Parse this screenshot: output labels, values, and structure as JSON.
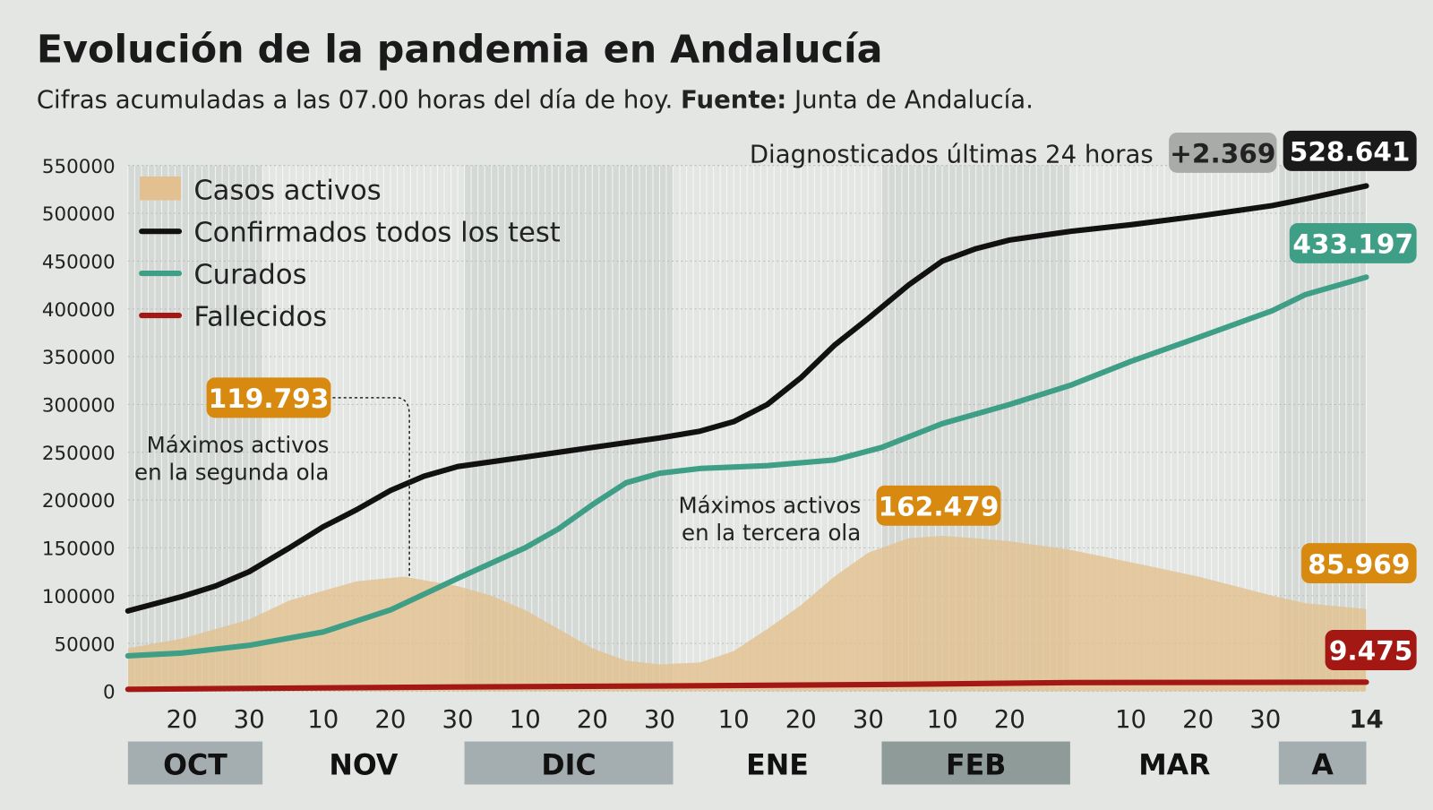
{
  "title": "Evolución de la pandemia en Andalucía",
  "subtitle_prefix": "Cifras acumuladas a las 07.00 horas del día de hoy.",
  "subtitle_source_label": "Fuente:",
  "subtitle_source": "Junta de Andalucía.",
  "diagnosed_label": "Diagnosticados últimas 24 horas",
  "diagnosed_delta": "+2.369",
  "colors": {
    "activos": "#e2c08f",
    "confirmados": "#111111",
    "curados": "#3f9e86",
    "fallecidos": "#a31812",
    "badge_activos": "#d8890f",
    "band": "#c9cecc"
  },
  "chart_data": {
    "type": "line",
    "title": "Evolución de la pandemia en Andalucía",
    "ylim": [
      0,
      550000
    ],
    "yticks": [
      "0",
      "50000",
      "100000",
      "150000",
      "200000",
      "250000",
      "300000",
      "350000",
      "400000",
      "450000",
      "500000",
      "550000"
    ],
    "xlim": [
      "2020-10-12",
      "2021-04-14"
    ],
    "xticks": [
      {
        "d": "2020-10-20",
        "l": "20"
      },
      {
        "d": "2020-10-30",
        "l": "30"
      },
      {
        "d": "2020-11-10",
        "l": "10"
      },
      {
        "d": "2020-11-20",
        "l": "20"
      },
      {
        "d": "2020-11-30",
        "l": "30"
      },
      {
        "d": "2020-12-10",
        "l": "10"
      },
      {
        "d": "2020-12-20",
        "l": "20"
      },
      {
        "d": "2020-12-30",
        "l": "30"
      },
      {
        "d": "2021-01-10",
        "l": "10"
      },
      {
        "d": "2021-01-20",
        "l": "20"
      },
      {
        "d": "2021-01-30",
        "l": "30"
      },
      {
        "d": "2021-02-10",
        "l": "10"
      },
      {
        "d": "2021-02-20",
        "l": "20"
      },
      {
        "d": "2021-03-10",
        "l": "10"
      },
      {
        "d": "2021-03-20",
        "l": "20"
      },
      {
        "d": "2021-03-30",
        "l": "30"
      },
      {
        "d": "2021-04-14",
        "l": "14"
      }
    ],
    "months": [
      {
        "l": "OCT",
        "from": "2020-10-12",
        "to": "2020-11-01",
        "shade": true
      },
      {
        "l": "NOV",
        "from": "2020-11-01",
        "to": "2020-12-01",
        "shade": false
      },
      {
        "l": "DIC",
        "from": "2020-12-01",
        "to": "2021-01-01",
        "shade": true
      },
      {
        "l": "ENE",
        "from": "2021-01-01",
        "to": "2021-02-01",
        "shade": false
      },
      {
        "l": "FEB",
        "from": "2021-02-01",
        "to": "2021-03-01",
        "shade": true
      },
      {
        "l": "MAR",
        "from": "2021-03-01",
        "to": "2021-04-01",
        "shade": false
      },
      {
        "l": "A",
        "from": "2021-04-01",
        "to": "2021-04-14",
        "shade": true
      }
    ],
    "legend": [
      "Casos activos",
      "Confirmados todos los test",
      "Curados",
      "Fallecidos"
    ],
    "series": [
      {
        "name": "Casos activos",
        "type": "area",
        "points": [
          [
            "2020-10-12",
            45000
          ],
          [
            "2020-10-20",
            55000
          ],
          [
            "2020-10-30",
            75000
          ],
          [
            "2020-11-05",
            95000
          ],
          [
            "2020-11-10",
            105000
          ],
          [
            "2020-11-15",
            115000
          ],
          [
            "2020-11-22",
            119793
          ],
          [
            "2020-11-30",
            110000
          ],
          [
            "2020-12-05",
            100000
          ],
          [
            "2020-12-10",
            85000
          ],
          [
            "2020-12-15",
            65000
          ],
          [
            "2020-12-20",
            45000
          ],
          [
            "2020-12-25",
            32000
          ],
          [
            "2020-12-30",
            28000
          ],
          [
            "2021-01-05",
            30000
          ],
          [
            "2021-01-10",
            42000
          ],
          [
            "2021-01-15",
            65000
          ],
          [
            "2021-01-20",
            90000
          ],
          [
            "2021-01-25",
            120000
          ],
          [
            "2021-01-30",
            145000
          ],
          [
            "2021-02-05",
            160000
          ],
          [
            "2021-02-10",
            162479
          ],
          [
            "2021-02-15",
            160000
          ],
          [
            "2021-02-20",
            157000
          ],
          [
            "2021-03-01",
            148000
          ],
          [
            "2021-03-10",
            135000
          ],
          [
            "2021-03-20",
            120000
          ],
          [
            "2021-03-31",
            100000
          ],
          [
            "2021-04-05",
            92000
          ],
          [
            "2021-04-14",
            85969
          ]
        ]
      },
      {
        "name": "Confirmados todos los test",
        "points": [
          [
            "2020-10-12",
            84000
          ],
          [
            "2020-10-20",
            99000
          ],
          [
            "2020-10-25",
            110000
          ],
          [
            "2020-10-30",
            125000
          ],
          [
            "2020-11-05",
            150000
          ],
          [
            "2020-11-10",
            172000
          ],
          [
            "2020-11-15",
            190000
          ],
          [
            "2020-11-20",
            210000
          ],
          [
            "2020-11-25",
            225000
          ],
          [
            "2020-11-30",
            235000
          ],
          [
            "2020-12-10",
            245000
          ],
          [
            "2020-12-20",
            255000
          ],
          [
            "2020-12-30",
            265000
          ],
          [
            "2021-01-05",
            272000
          ],
          [
            "2021-01-10",
            282000
          ],
          [
            "2021-01-15",
            300000
          ],
          [
            "2021-01-20",
            328000
          ],
          [
            "2021-01-25",
            362000
          ],
          [
            "2021-01-30",
            390000
          ],
          [
            "2021-02-05",
            425000
          ],
          [
            "2021-02-10",
            450000
          ],
          [
            "2021-02-15",
            463000
          ],
          [
            "2021-02-20",
            472000
          ],
          [
            "2021-03-01",
            481000
          ],
          [
            "2021-03-10",
            488000
          ],
          [
            "2021-03-20",
            497000
          ],
          [
            "2021-03-31",
            508000
          ],
          [
            "2021-04-05",
            515000
          ],
          [
            "2021-04-14",
            528641
          ]
        ]
      },
      {
        "name": "Curados",
        "points": [
          [
            "2020-10-12",
            37000
          ],
          [
            "2020-10-20",
            40000
          ],
          [
            "2020-10-30",
            48000
          ],
          [
            "2020-11-10",
            62000
          ],
          [
            "2020-11-20",
            85000
          ],
          [
            "2020-11-30",
            118000
          ],
          [
            "2020-12-10",
            150000
          ],
          [
            "2020-12-15",
            170000
          ],
          [
            "2020-12-20",
            195000
          ],
          [
            "2020-12-25",
            218000
          ],
          [
            "2020-12-30",
            228000
          ],
          [
            "2021-01-05",
            233000
          ],
          [
            "2021-01-15",
            236000
          ],
          [
            "2021-01-25",
            242000
          ],
          [
            "2021-02-01",
            255000
          ],
          [
            "2021-02-10",
            280000
          ],
          [
            "2021-02-20",
            300000
          ],
          [
            "2021-03-01",
            320000
          ],
          [
            "2021-03-10",
            345000
          ],
          [
            "2021-03-20",
            370000
          ],
          [
            "2021-03-31",
            398000
          ],
          [
            "2021-04-05",
            415000
          ],
          [
            "2021-04-14",
            433197
          ]
        ]
      },
      {
        "name": "Fallecidos",
        "points": [
          [
            "2020-10-12",
            2000
          ],
          [
            "2020-11-30",
            4500
          ],
          [
            "2020-12-30",
            5500
          ],
          [
            "2021-02-01",
            7000
          ],
          [
            "2021-03-01",
            9000
          ],
          [
            "2021-04-14",
            9475
          ]
        ]
      }
    ],
    "annotations": {
      "max2_value": "119.793",
      "max2_text": [
        "Máximos activos",
        "en la segunda ola"
      ],
      "max3_value": "162.479",
      "max3_text": [
        "Máximos activos",
        "en la tercera ola"
      ],
      "last_confirmados": "528.641",
      "last_curados": "433.197",
      "last_activos": "85.969",
      "last_fallecidos": "9.475"
    }
  }
}
